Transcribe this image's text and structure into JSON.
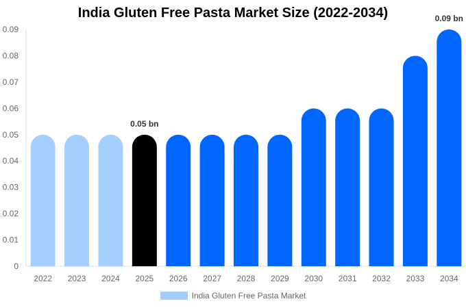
{
  "chart_data": {
    "type": "bar",
    "title": "India Gluten Free Pasta Market Size (2022-2034)",
    "categories": [
      "2022",
      "2023",
      "2024",
      "2025",
      "2026",
      "2027",
      "2028",
      "2029",
      "2030",
      "2031",
      "2032",
      "2033",
      "2034"
    ],
    "series": [
      {
        "name": "India Gluten Free Pasta Market",
        "values": [
          0.05,
          0.05,
          0.05,
          0.05,
          0.05,
          0.05,
          0.05,
          0.05,
          0.06,
          0.06,
          0.06,
          0.08,
          0.09
        ]
      }
    ],
    "bar_colors": [
      "#a3cfff",
      "#a3cfff",
      "#a3cfff",
      "#000000",
      "#0066ff",
      "#0066ff",
      "#0066ff",
      "#0066ff",
      "#0066ff",
      "#0066ff",
      "#0066ff",
      "#0066ff",
      "#0066ff"
    ],
    "data_labels": {
      "3": "0.05 bn",
      "12": "0.09 bn"
    },
    "yticks": [
      "0",
      "0.01",
      "0.02",
      "0.03",
      "0.04",
      "0.05",
      "0.06",
      "0.07",
      "0.08",
      "0.09"
    ],
    "ylim": [
      0,
      0.09
    ],
    "grid": false,
    "legend": {
      "position": "bottom",
      "label": "India Gluten Free Pasta Market",
      "color": "#a3cfff"
    },
    "xlabel": "",
    "ylabel": ""
  }
}
